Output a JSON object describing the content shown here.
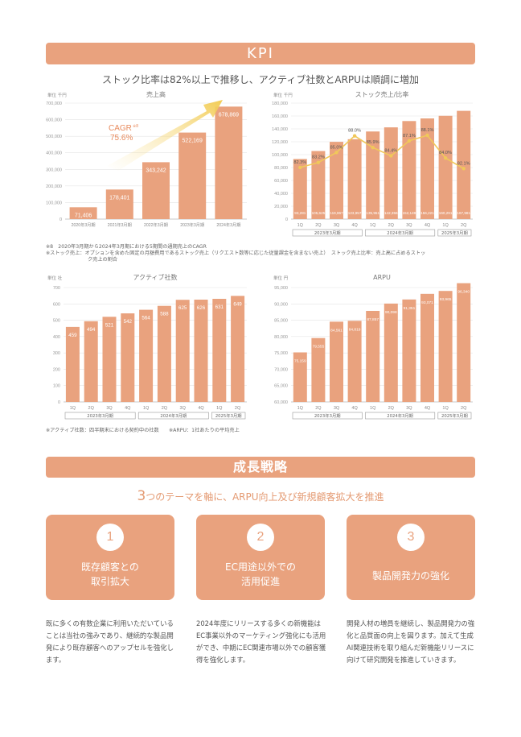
{
  "kpi": {
    "banner": "KPI",
    "subtitle": "ストック比率は82%以上で推移し、アクティブ社数とARPUは順調に増加"
  },
  "sales_chart": {
    "title": "売上高",
    "unit": "単位 千円",
    "cagr_label": "CAGR",
    "cagr_note": "※8",
    "cagr_value": "75.6%",
    "notes": [
      "※8　2020年3月期から2024年3月期における5期間の通期売上のCAGR",
      "※ストック売上：オプションを含めた固定の月額費用であるストック売上（リクエスト数等に応じた従量課金を含まない売上）　ストック売上比率：売上高に占めるストッ",
      "ク売上の割合"
    ]
  },
  "bottom_notes": "※アクティブ社数：四半期末における契約中の社数　　※ARPU：1社あたりの平均売上",
  "chart_data": [
    {
      "type": "bar",
      "title": "売上高",
      "unit": "単位 千円",
      "categories": [
        "2020年3月期",
        "2021年3月期",
        "2022年3月期",
        "2023年3月期",
        "2024年3月期"
      ],
      "values": [
        71406,
        178401,
        343242,
        522169,
        678869
      ],
      "labels": [
        "71,406",
        "178,401",
        "343,242",
        "522,169",
        "678,869"
      ],
      "ylim": [
        0,
        700000
      ],
      "yticks": [
        "0",
        "100,000",
        "200,000",
        "300,000",
        "400,000",
        "500,000",
        "600,000",
        "700,000"
      ],
      "color": "#e9a27e"
    },
    {
      "type": "bar+line",
      "title": "ストック売上/比率",
      "unit": "単位 千円",
      "categories": [
        "1Q",
        "2Q",
        "3Q",
        "4Q",
        "1Q",
        "2Q",
        "3Q",
        "4Q",
        "1Q",
        "2Q"
      ],
      "groups": [
        "2023年3月期",
        "2024年3月期",
        "2025年3月期"
      ],
      "values": [
        93281,
        105625,
        119867,
        123957,
        135951,
        142356,
        152149,
        156221,
        160291,
        167981
      ],
      "labels": [
        "93,281",
        "105,625",
        "119,867",
        "123,957",
        "135,951",
        "142,356",
        "152,149",
        "156,221",
        "160,291",
        "167,981"
      ],
      "ratio": [
        82.3,
        83.2,
        85.0,
        88.0,
        85.9,
        84.4,
        87.1,
        88.1,
        84.0,
        82.1
      ],
      "ratio_labels": [
        "82.3%",
        "83.2%",
        "85.0%",
        "88.0%",
        "85.9%",
        "84.4%",
        "87.1%",
        "88.1%",
        "84.0%",
        "82.1%"
      ],
      "ylim": [
        0,
        180000
      ],
      "yticks": [
        "0",
        "20,000",
        "40,000",
        "60,000",
        "80,000",
        "100,000",
        "120,000",
        "140,000",
        "160,000",
        "180,000"
      ],
      "color": "#e9a27e",
      "line_color": "#f0c85a"
    },
    {
      "type": "bar",
      "title": "アクティブ社数",
      "unit": "単位 社",
      "categories": [
        "1Q",
        "2Q",
        "3Q",
        "4Q",
        "1Q",
        "2Q",
        "3Q",
        "4Q",
        "1Q",
        "2Q"
      ],
      "groups": [
        "2023年3月期",
        "2024年3月期",
        "2025年3月期"
      ],
      "values": [
        459,
        494,
        521,
        542,
        564,
        588,
        625,
        626,
        631,
        649
      ],
      "labels": [
        "459",
        "494",
        "521",
        "542",
        "564",
        "588",
        "625",
        "626",
        "631",
        "649"
      ],
      "ylim": [
        0,
        700
      ],
      "yticks": [
        "0",
        "100",
        "200",
        "300",
        "400",
        "500",
        "600",
        "700"
      ],
      "color": "#e9a27e"
    },
    {
      "type": "bar",
      "title": "ARPU",
      "unit": "単位 円",
      "categories": [
        "1Q",
        "2Q",
        "3Q",
        "4Q",
        "1Q",
        "2Q",
        "3Q",
        "4Q",
        "1Q",
        "2Q"
      ],
      "groups": [
        "2023年3月期",
        "2024年3月期",
        "2025年3月期"
      ],
      "values": [
        75159,
        79555,
        84561,
        84819,
        87857,
        90098,
        91351,
        93071,
        93965,
        96340
      ],
      "labels": [
        "75,159",
        "79,555",
        "84,561",
        "84,819",
        "87,857",
        "90,098",
        "91,351",
        "93,071",
        "93,965",
        "96,340"
      ],
      "ylim": [
        60000,
        95000
      ],
      "yticks": [
        "60,000",
        "65,000",
        "70,000",
        "75,000",
        "80,000",
        "85,000",
        "90,000",
        "95,000"
      ],
      "color": "#e9a27e"
    }
  ],
  "growth": {
    "banner": "成長戦略",
    "subtitle_num": "3",
    "subtitle_rest": "つのテーマを軸に、ARPU向上及び新規顧客拡大を推進",
    "cards": [
      {
        "num": "1",
        "title_line1": "既存顧客との",
        "title_line2": "取引拡大",
        "desc": "既に多くの有数企業に利用いただいていることは当社の強みであり、継続的な製品開発により既存顧客へのアップセルを強化します。"
      },
      {
        "num": "2",
        "title_line1": "EC用途以外での",
        "title_line2": "活用促進",
        "desc": "2024年度にリリースする多くの新機能はEC事業以外のマーケティング強化にも活用ができ、中期にEC関連市場以外での顧客獲得を強化します。"
      },
      {
        "num": "3",
        "title_line1": "製品開発力の強化",
        "title_line2": "",
        "desc": "開発人材の増員を継続し、製品開発力の強化と品質面の向上を図ります。加えて生成AI関連技術を取り組んだ新機能リリースに向けて研究開発を推進していきます。"
      }
    ]
  }
}
